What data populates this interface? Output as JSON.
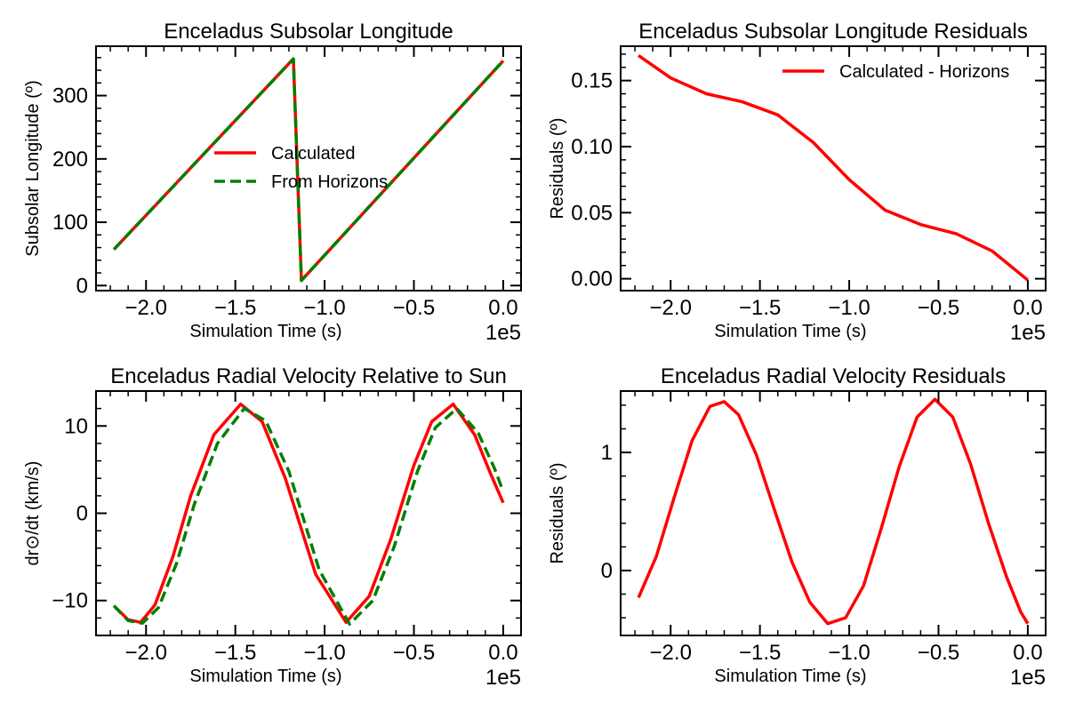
{
  "chart_data": [
    {
      "type": "line",
      "title": "Enceladus Subsolar Longitude",
      "xlabel": "Simulation Time (s)",
      "ylabel": "Subsolar Longitude (º)",
      "x_offset_label": "1e5",
      "xlim": [
        -2.28,
        0.1
      ],
      "ylim": [
        -8,
        378
      ],
      "xticks": [
        -2.0,
        -1.5,
        -1.0,
        -0.5,
        0.0
      ],
      "xtick_labels": [
        "−2.0",
        "−1.5",
        "−1.0",
        "−0.5",
        "0.0"
      ],
      "yticks": [
        0,
        100,
        200,
        300
      ],
      "ytick_labels": [
        "0",
        "100",
        "200",
        "300"
      ],
      "legend": {
        "position": "center",
        "entries": [
          "Calculated",
          "From Horizons"
        ]
      },
      "series": [
        {
          "name": "Calculated",
          "color": "#ff0000",
          "style": "solid",
          "x": [
            -2.18,
            -1.175,
            -1.13,
            0.0
          ],
          "y": [
            57,
            358,
            8,
            355
          ]
        },
        {
          "name": "From Horizons",
          "color": "#008000",
          "style": "dashed",
          "x": [
            -2.18,
            -1.175,
            -1.13,
            0.0
          ],
          "y": [
            57,
            358,
            8,
            355
          ]
        }
      ]
    },
    {
      "type": "line",
      "title": "Enceladus Subsolar Longitude Residuals",
      "xlabel": "Simulation Time (s)",
      "ylabel": "Residuals (º)",
      "x_offset_label": "1e5",
      "xlim": [
        -2.28,
        0.1
      ],
      "ylim": [
        -0.009,
        0.176
      ],
      "xticks": [
        -2.0,
        -1.5,
        -1.0,
        -0.5,
        0.0
      ],
      "xtick_labels": [
        "−2.0",
        "−1.5",
        "−1.0",
        "−0.5",
        "0.0"
      ],
      "yticks": [
        0.0,
        0.05,
        0.1,
        0.15
      ],
      "ytick_labels": [
        "0.00",
        "0.05",
        "0.10",
        "0.15"
      ],
      "legend": {
        "position": "top-right",
        "entries": [
          "Calculated - Horizons"
        ]
      },
      "series": [
        {
          "name": "Calculated - Horizons",
          "color": "#ff0000",
          "style": "solid",
          "x": [
            -2.18,
            -2.0,
            -1.8,
            -1.6,
            -1.4,
            -1.2,
            -1.0,
            -0.8,
            -0.6,
            -0.4,
            -0.2,
            0.0
          ],
          "y": [
            0.169,
            0.152,
            0.14,
            0.134,
            0.124,
            0.103,
            0.075,
            0.052,
            0.041,
            0.034,
            0.021,
            -0.001
          ]
        }
      ]
    },
    {
      "type": "line",
      "title": "Enceladus Radial Velocity Relative to Sun",
      "xlabel": "Simulation Time (s)",
      "ylabel": "dr⊙/dt (km/s)",
      "x_offset_label": "1e5",
      "xlim": [
        -2.28,
        0.1
      ],
      "ylim": [
        -14.0,
        14.0
      ],
      "xticks": [
        -2.0,
        -1.5,
        -1.0,
        -0.5,
        0.0
      ],
      "xtick_labels": [
        "−2.0",
        "−1.5",
        "−1.0",
        "−0.5",
        "0.0"
      ],
      "yticks": [
        -10,
        0,
        10
      ],
      "ytick_labels": [
        "−10",
        "0",
        "10"
      ],
      "series": [
        {
          "name": "Calculated",
          "color": "#ff0000",
          "style": "solid",
          "x": [
            -2.18,
            -2.1,
            -2.03,
            -1.95,
            -1.85,
            -1.75,
            -1.62,
            -1.47,
            -1.35,
            -1.22,
            -1.05,
            -0.88,
            -0.75,
            -0.63,
            -0.5,
            -0.4,
            -0.28,
            -0.16,
            -0.07,
            0.0
          ],
          "y": [
            -10.6,
            -12.2,
            -12.5,
            -10.5,
            -5.0,
            2.0,
            9.0,
            12.5,
            10.5,
            4.0,
            -7.0,
            -12.5,
            -9.5,
            -3.0,
            5.5,
            10.5,
            12.5,
            9.0,
            4.5,
            1.2
          ]
        },
        {
          "name": "From Horizons",
          "color": "#008000",
          "style": "dashed",
          "x": [
            -2.18,
            -2.1,
            -2.02,
            -1.93,
            -1.83,
            -1.73,
            -1.6,
            -1.45,
            -1.33,
            -1.2,
            -1.03,
            -0.86,
            -0.73,
            -0.61,
            -0.48,
            -0.38,
            -0.26,
            -0.14,
            -0.05,
            0.0
          ],
          "y": [
            -10.6,
            -12.3,
            -12.6,
            -10.8,
            -5.8,
            1.0,
            8.0,
            12.0,
            10.6,
            4.8,
            -6.5,
            -12.7,
            -10.0,
            -3.8,
            4.8,
            9.8,
            12.0,
            9.2,
            5.2,
            2.5
          ]
        }
      ]
    },
    {
      "type": "line",
      "title": "Enceladus Radial Velocity Residuals",
      "xlabel": "Simulation Time (s)",
      "ylabel": "Residuals (º)",
      "x_offset_label": "1e5",
      "xlim": [
        -2.28,
        0.1
      ],
      "ylim": [
        -0.55,
        1.52
      ],
      "xticks": [
        -2.0,
        -1.5,
        -1.0,
        -0.5,
        0.0
      ],
      "xtick_labels": [
        "−2.0",
        "−1.5",
        "−1.0",
        "−0.5",
        "0.0"
      ],
      "yticks": [
        0,
        1
      ],
      "ytick_labels": [
        "0",
        "1"
      ],
      "series": [
        {
          "name": "Residuals",
          "color": "#ff0000",
          "style": "solid",
          "x": [
            -2.18,
            -2.08,
            -1.98,
            -1.88,
            -1.78,
            -1.7,
            -1.62,
            -1.52,
            -1.42,
            -1.32,
            -1.22,
            -1.12,
            -1.02,
            -0.92,
            -0.82,
            -0.72,
            -0.62,
            -0.52,
            -0.42,
            -0.32,
            -0.22,
            -0.12,
            -0.04,
            0.0
          ],
          "y": [
            -0.23,
            0.12,
            0.62,
            1.1,
            1.39,
            1.43,
            1.32,
            0.98,
            0.52,
            0.07,
            -0.27,
            -0.45,
            -0.4,
            -0.13,
            0.36,
            0.88,
            1.3,
            1.45,
            1.3,
            0.9,
            0.4,
            -0.05,
            -0.35,
            -0.45
          ]
        }
      ]
    }
  ]
}
